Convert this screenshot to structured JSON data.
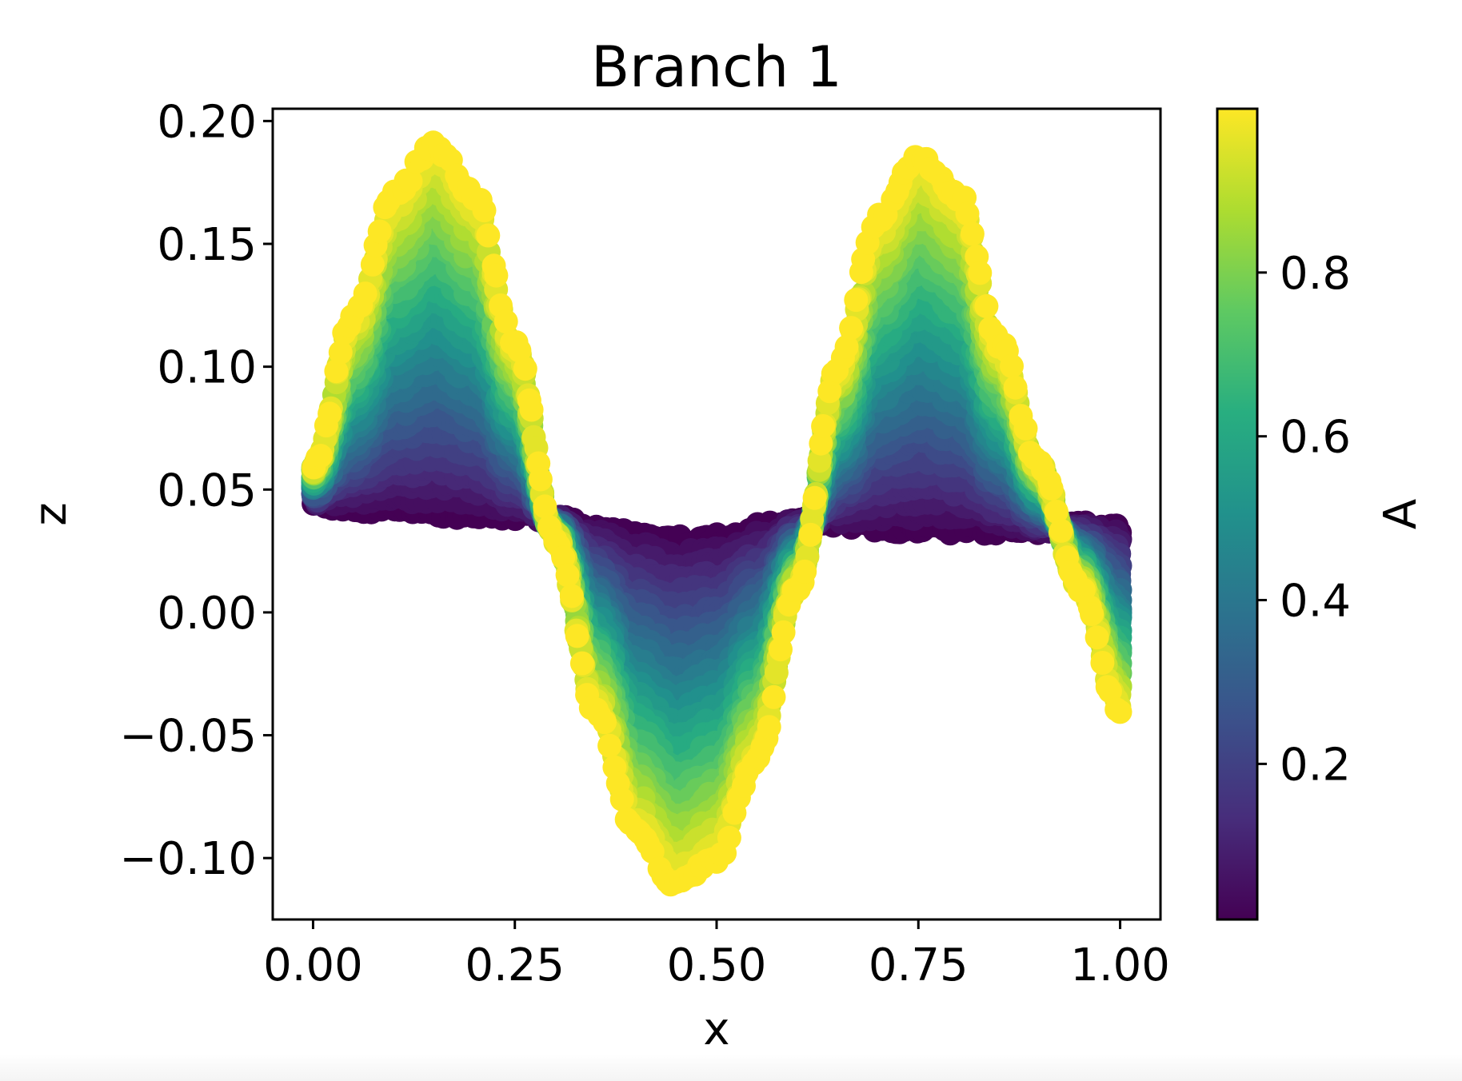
{
  "chart_data": {
    "type": "scatter",
    "title": "Branch 1",
    "xlabel": "x",
    "ylabel": "z",
    "xlim": [
      -0.05,
      1.05
    ],
    "ylim": [
      -0.125,
      0.205
    ],
    "xticks": [
      0.0,
      0.25,
      0.5,
      0.75,
      1.0
    ],
    "xtick_labels": [
      "0.00",
      "0.25",
      "0.50",
      "0.75",
      "1.00"
    ],
    "yticks": [
      -0.1,
      -0.05,
      0.0,
      0.05,
      0.1,
      0.15,
      0.2
    ],
    "ytick_labels": [
      "−0.10",
      "−0.05",
      "0.00",
      "0.05",
      "0.10",
      "0.15",
      "0.20"
    ],
    "grid": false,
    "colormap": "viridis",
    "colorbar": {
      "label": "A",
      "range": [
        0.01,
        1.0
      ],
      "ticks": [
        0.2,
        0.4,
        0.6,
        0.8
      ],
      "tick_labels": [
        "0.2",
        "0.4",
        "0.6",
        "0.8"
      ]
    },
    "envelope": {
      "x": [
        0.0,
        0.05,
        0.1,
        0.15,
        0.2,
        0.25,
        0.3,
        0.35,
        0.4,
        0.45,
        0.5,
        0.55,
        0.6,
        0.65,
        0.7,
        0.75,
        0.8,
        0.85,
        0.9,
        0.95,
        1.0
      ],
      "z_center": [
        0.045,
        0.043,
        0.042,
        0.041,
        0.04,
        0.04,
        0.038,
        0.034,
        0.031,
        0.029,
        0.03,
        0.034,
        0.037,
        0.036,
        0.035,
        0.034,
        0.034,
        0.034,
        0.034,
        0.035,
        0.034
      ],
      "z_outer": [
        0.06,
        0.12,
        0.17,
        0.19,
        0.17,
        0.11,
        0.03,
        -0.04,
        -0.09,
        -0.11,
        -0.1,
        -0.06,
        0.01,
        0.1,
        0.16,
        0.185,
        0.17,
        0.11,
        0.06,
        0.01,
        -0.04
      ],
      "A_center": 0.01,
      "A_outer": 1.0
    }
  }
}
